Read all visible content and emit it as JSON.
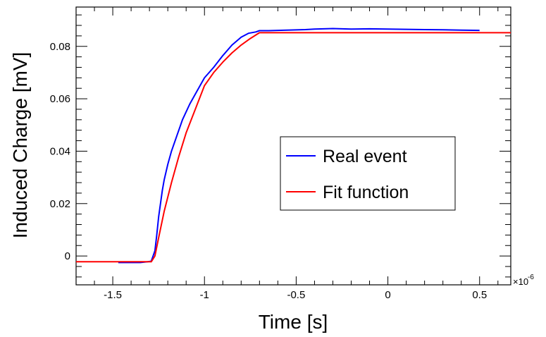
{
  "chart_data": {
    "type": "line",
    "xlabel": "Time [s]",
    "ylabel": "Induced Charge [mV]",
    "x_multiplier_base": "×10",
    "x_multiplier_exp": "-6",
    "xlim": [
      -1.7,
      0.67
    ],
    "ylim": [
      -0.011,
      0.095
    ],
    "x_ticks": [
      {
        "value": -1.5,
        "label": "-1.5"
      },
      {
        "value": -1.0,
        "label": "-1"
      },
      {
        "value": -0.5,
        "label": "-0.5"
      },
      {
        "value": 0.0,
        "label": "0"
      },
      {
        "value": 0.5,
        "label": "0.5"
      }
    ],
    "y_ticks": [
      {
        "value": 0.0,
        "label": "0"
      },
      {
        "value": 0.02,
        "label": "0.02"
      },
      {
        "value": 0.04,
        "label": "0.04"
      },
      {
        "value": 0.06,
        "label": "0.06"
      },
      {
        "value": 0.08,
        "label": "0.08"
      }
    ],
    "legend_position": "center-right",
    "series": [
      {
        "name": "Real event",
        "color": "#0000ff",
        "x": [
          -1.47,
          -1.4,
          -1.35,
          -1.31,
          -1.29,
          -1.27,
          -1.26,
          -1.25,
          -1.24,
          -1.23,
          -1.22,
          -1.2,
          -1.18,
          -1.15,
          -1.12,
          -1.08,
          -1.04,
          -1.0,
          -0.95,
          -0.9,
          -0.85,
          -0.8,
          -0.76,
          -0.72,
          -0.7,
          -0.65,
          -0.55,
          -0.45,
          -0.4,
          -0.3,
          -0.2,
          -0.1,
          0.0,
          0.1,
          0.2,
          0.3,
          0.4,
          0.5
        ],
        "y": [
          -0.0025,
          -0.0025,
          -0.0025,
          -0.0022,
          -0.002,
          0.002,
          0.008,
          0.015,
          0.02,
          0.025,
          0.029,
          0.035,
          0.04,
          0.046,
          0.052,
          0.058,
          0.063,
          0.068,
          0.072,
          0.0765,
          0.0805,
          0.0835,
          0.085,
          0.0855,
          0.086,
          0.086,
          0.0862,
          0.0864,
          0.0866,
          0.0868,
          0.0866,
          0.0867,
          0.0866,
          0.0865,
          0.0864,
          0.0863,
          0.0862,
          0.0861
        ]
      },
      {
        "name": "Fit function",
        "color": "#ff0000",
        "x": [
          -1.7,
          -1.29,
          -1.27,
          -1.25,
          -1.22,
          -1.18,
          -1.14,
          -1.1,
          -1.05,
          -1.0,
          -0.95,
          -0.9,
          -0.85,
          -0.8,
          -0.75,
          -0.7,
          -0.6,
          -0.4,
          -0.2,
          0.0,
          0.2,
          0.4,
          0.67
        ],
        "y": [
          -0.0022,
          -0.0022,
          0.0,
          0.007,
          0.017,
          0.028,
          0.038,
          0.047,
          0.056,
          0.065,
          0.07,
          0.074,
          0.0775,
          0.0805,
          0.083,
          0.0852,
          0.0852,
          0.0852,
          0.0852,
          0.0852,
          0.0852,
          0.0852,
          0.0852
        ]
      }
    ]
  }
}
